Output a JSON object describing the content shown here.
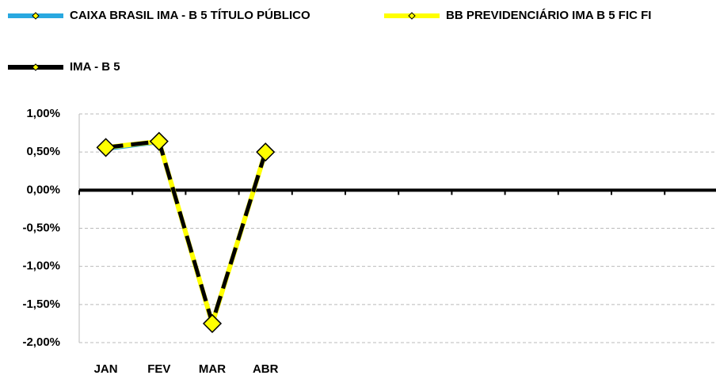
{
  "chart_data": {
    "type": "line",
    "categories": [
      "JAN",
      "FEV",
      "MAR",
      "ABR",
      null,
      null,
      null,
      null,
      null,
      null,
      null,
      null
    ],
    "series": [
      {
        "name": "CAIXA BRASIL IMA - B 5 TÍTULO PÚBLICO",
        "color": "#29a8e0",
        "values": [
          0.54,
          0.63,
          -1.74,
          0.49,
          null,
          null,
          null,
          null,
          null,
          null,
          null,
          null
        ]
      },
      {
        "name": "BB PREVIDENCIÁRIO IMA B 5 FIC FI",
        "color": "#ffff00",
        "values": [
          0.56,
          0.64,
          -1.75,
          0.5,
          null,
          null,
          null,
          null,
          null,
          null,
          null,
          null
        ]
      },
      {
        "name": "IMA - B 5",
        "color": "#000000",
        "values": [
          0.56,
          0.64,
          -1.74,
          0.5,
          null,
          null,
          null,
          null,
          null,
          null,
          null,
          null
        ]
      }
    ],
    "ylim": [
      -2,
      1
    ],
    "yticks": [
      {
        "value": 1,
        "label": "1,00%"
      },
      {
        "value": 0.5,
        "label": "0,50%"
      },
      {
        "value": 0,
        "label": "0,00%"
      },
      {
        "value": -0.5,
        "label": "-0,50%"
      },
      {
        "value": -1,
        "label": "-1,00%"
      },
      {
        "value": -1.5,
        "label": "-1,50%"
      },
      {
        "value": -2,
        "label": "-2,00%"
      }
    ],
    "grid": true
  }
}
